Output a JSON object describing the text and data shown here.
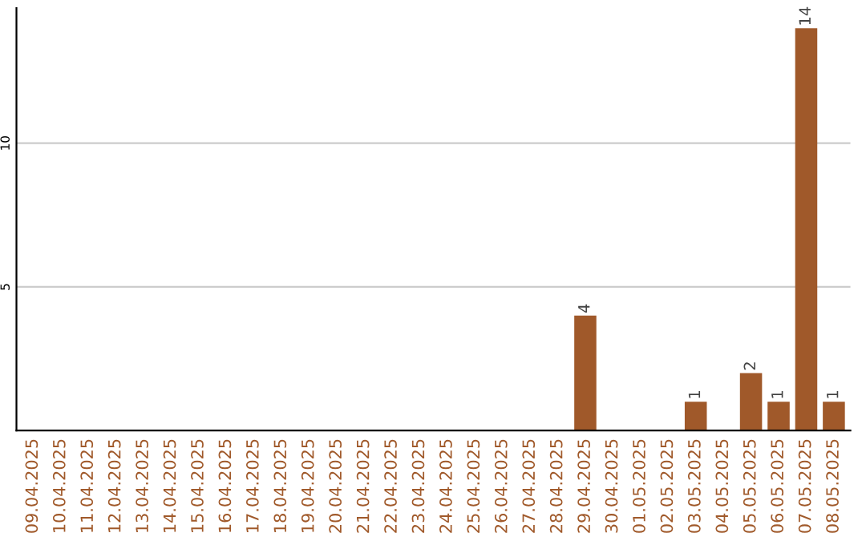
{
  "chart_data": {
    "type": "bar",
    "categories": [
      "09.04.2025",
      "10.04.2025",
      "11.04.2025",
      "12.04.2025",
      "13.04.2025",
      "14.04.2025",
      "15.04.2025",
      "16.04.2025",
      "17.04.2025",
      "18.04.2025",
      "19.04.2025",
      "20.04.2025",
      "21.04.2025",
      "22.04.2025",
      "23.04.2025",
      "24.04.2025",
      "25.04.2025",
      "26.04.2025",
      "27.04.2025",
      "28.04.2025",
      "29.04.2025",
      "30.04.2025",
      "01.05.2025",
      "02.05.2025",
      "03.05.2025",
      "04.05.2025",
      "05.05.2025",
      "06.05.2025",
      "07.05.2025",
      "08.05.2025"
    ],
    "values": [
      0,
      0,
      0,
      0,
      0,
      0,
      0,
      0,
      0,
      0,
      0,
      0,
      0,
      0,
      0,
      0,
      0,
      0,
      0,
      0,
      4,
      0,
      0,
      0,
      1,
      0,
      2,
      1,
      14,
      1
    ],
    "value_labels": [
      null,
      null,
      null,
      null,
      null,
      null,
      null,
      null,
      null,
      null,
      null,
      null,
      null,
      null,
      null,
      null,
      null,
      null,
      null,
      null,
      "4",
      null,
      null,
      null,
      "1",
      null,
      "2",
      "1",
      "14",
      "1"
    ],
    "color": "#a0592a",
    "ylim": [
      0,
      14.7
    ],
    "yticks": [
      5,
      10
    ],
    "grid": "y"
  }
}
